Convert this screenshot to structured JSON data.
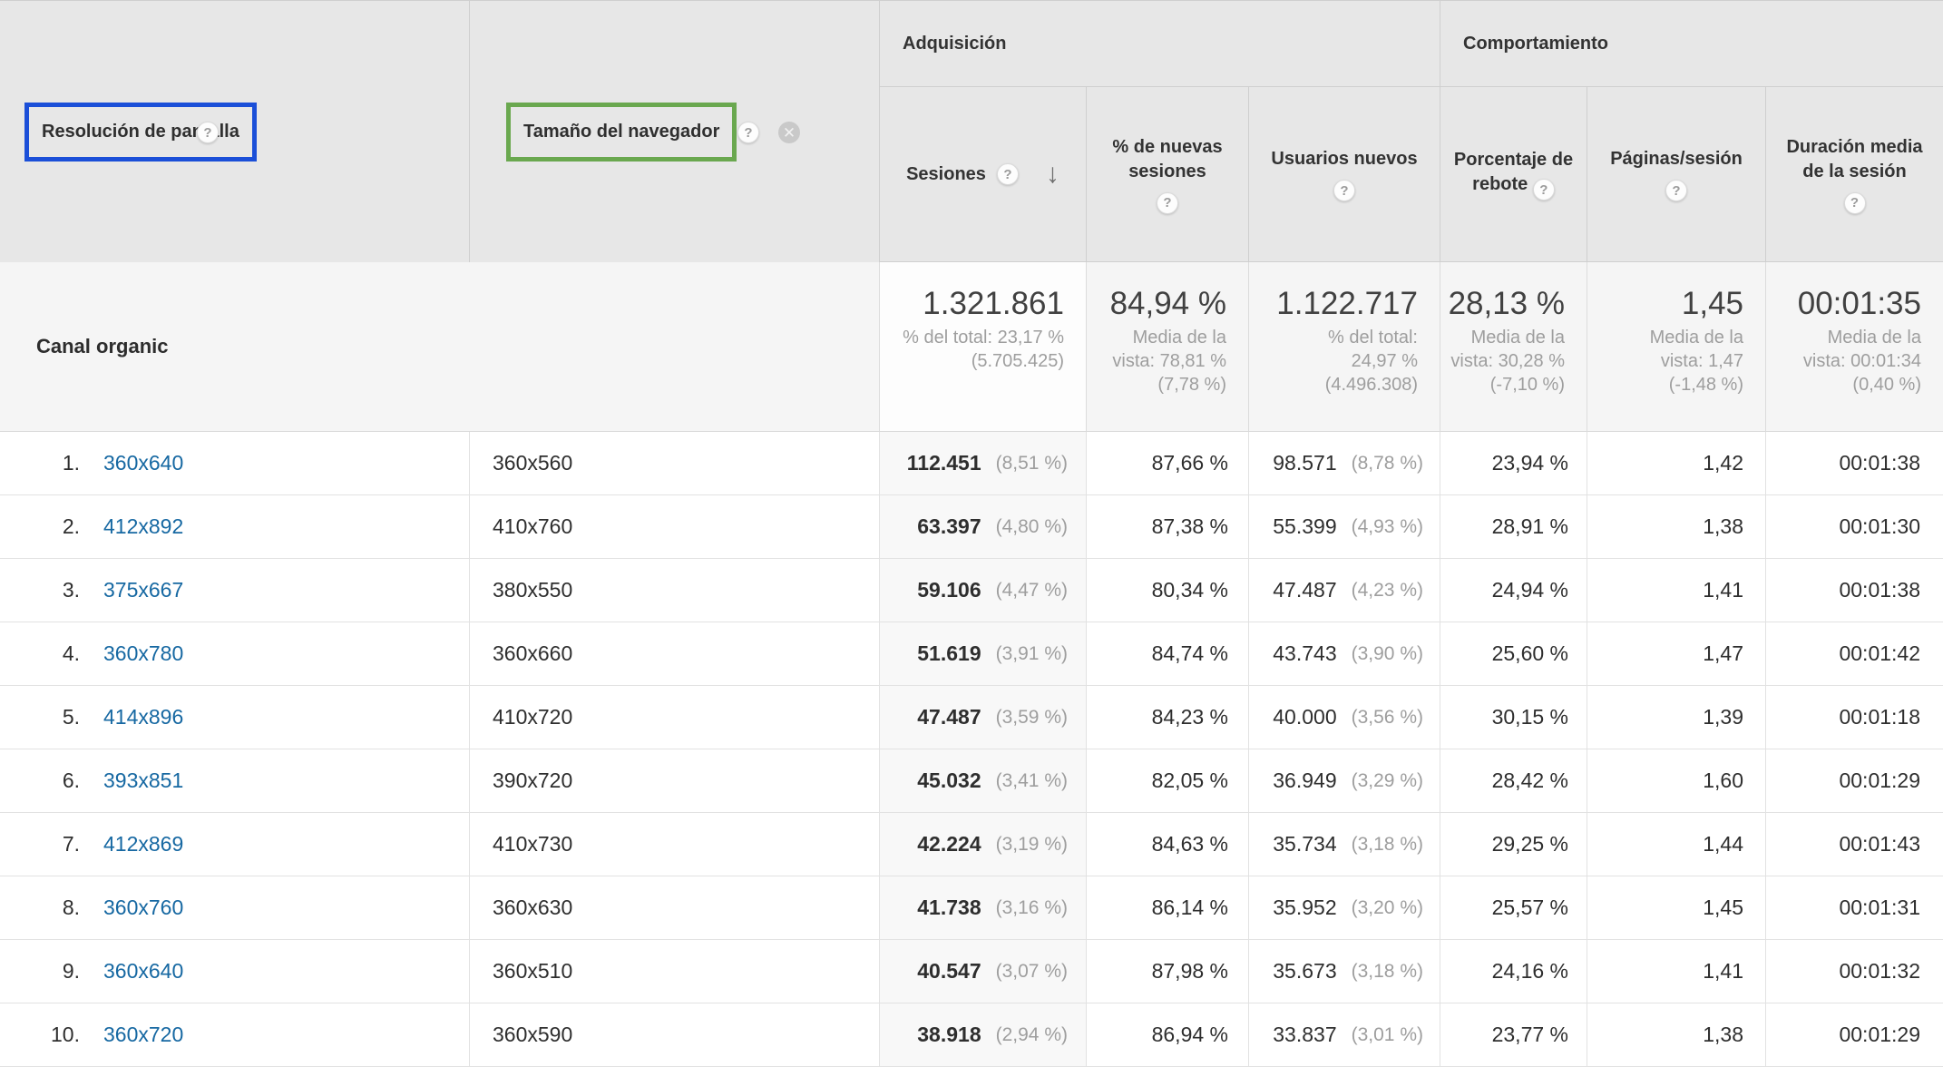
{
  "table": {
    "dimension_headers": {
      "primary": {
        "label": "Resolución de pantalla",
        "box_color": "#1b4fd8"
      },
      "secondary": {
        "label": "Tamaño del navegador",
        "box_color": "#6aa84f"
      }
    },
    "groups": {
      "acquisition": "Adquisición",
      "behavior": "Comportamiento"
    },
    "metric_headers": {
      "sessions": "Sesiones",
      "new_sessions_pct": "% de nuevas sesiones",
      "new_users": "Usuarios nuevos",
      "bounce_rate": "Porcentaje de rebote",
      "pages_per_session": "Páginas/sesión",
      "avg_session_duration": "Duración media de la sesión"
    },
    "summary": {
      "label": "Canal organic",
      "metrics": [
        {
          "value": "1.321.861",
          "sub": "% del total: 23,17 %\n(5.705.425)"
        },
        {
          "value": "84,94 %",
          "sub": "Media de la\nvista: 78,81 %\n(7,78 %)"
        },
        {
          "value": "1.122.717",
          "sub": "% del total:\n24,97 %\n(4.496.308)"
        },
        {
          "value": "28,13 %",
          "sub": "Media de la\nvista: 30,28 %\n(-7,10 %)"
        },
        {
          "value": "1,45",
          "sub": "Media de la\nvista: 1,47\n(-1,48 %)"
        },
        {
          "value": "00:01:35",
          "sub": "Media de la\nvista: 00:01:34\n(0,40 %)"
        }
      ]
    },
    "rows": [
      {
        "rank": "1.",
        "resolution": "360x640",
        "browser_size": "360x560",
        "sessions": "112.451",
        "sessions_pct": "(8,51 %)",
        "new_sessions_pct": "87,66 %",
        "new_users": "98.571",
        "new_users_pct": "(8,78 %)",
        "bounce_rate": "23,94 %",
        "pages_per_session": "1,42",
        "avg_session_duration": "00:01:38"
      },
      {
        "rank": "2.",
        "resolution": "412x892",
        "browser_size": "410x760",
        "sessions": "63.397",
        "sessions_pct": "(4,80 %)",
        "new_sessions_pct": "87,38 %",
        "new_users": "55.399",
        "new_users_pct": "(4,93 %)",
        "bounce_rate": "28,91 %",
        "pages_per_session": "1,38",
        "avg_session_duration": "00:01:30"
      },
      {
        "rank": "3.",
        "resolution": "375x667",
        "browser_size": "380x550",
        "sessions": "59.106",
        "sessions_pct": "(4,47 %)",
        "new_sessions_pct": "80,34 %",
        "new_users": "47.487",
        "new_users_pct": "(4,23 %)",
        "bounce_rate": "24,94 %",
        "pages_per_session": "1,41",
        "avg_session_duration": "00:01:38"
      },
      {
        "rank": "4.",
        "resolution": "360x780",
        "browser_size": "360x660",
        "sessions": "51.619",
        "sessions_pct": "(3,91 %)",
        "new_sessions_pct": "84,74 %",
        "new_users": "43.743",
        "new_users_pct": "(3,90 %)",
        "bounce_rate": "25,60 %",
        "pages_per_session": "1,47",
        "avg_session_duration": "00:01:42"
      },
      {
        "rank": "5.",
        "resolution": "414x896",
        "browser_size": "410x720",
        "sessions": "47.487",
        "sessions_pct": "(3,59 %)",
        "new_sessions_pct": "84,23 %",
        "new_users": "40.000",
        "new_users_pct": "(3,56 %)",
        "bounce_rate": "30,15 %",
        "pages_per_session": "1,39",
        "avg_session_duration": "00:01:18"
      },
      {
        "rank": "6.",
        "resolution": "393x851",
        "browser_size": "390x720",
        "sessions": "45.032",
        "sessions_pct": "(3,41 %)",
        "new_sessions_pct": "82,05 %",
        "new_users": "36.949",
        "new_users_pct": "(3,29 %)",
        "bounce_rate": "28,42 %",
        "pages_per_session": "1,60",
        "avg_session_duration": "00:01:29"
      },
      {
        "rank": "7.",
        "resolution": "412x869",
        "browser_size": "410x730",
        "sessions": "42.224",
        "sessions_pct": "(3,19 %)",
        "new_sessions_pct": "84,63 %",
        "new_users": "35.734",
        "new_users_pct": "(3,18 %)",
        "bounce_rate": "29,25 %",
        "pages_per_session": "1,44",
        "avg_session_duration": "00:01:43"
      },
      {
        "rank": "8.",
        "resolution": "360x760",
        "browser_size": "360x630",
        "sessions": "41.738",
        "sessions_pct": "(3,16 %)",
        "new_sessions_pct": "86,14 %",
        "new_users": "35.952",
        "new_users_pct": "(3,20 %)",
        "bounce_rate": "25,57 %",
        "pages_per_session": "1,45",
        "avg_session_duration": "00:01:31"
      },
      {
        "rank": "9.",
        "resolution": "360x640",
        "browser_size": "360x510",
        "sessions": "40.547",
        "sessions_pct": "(3,07 %)",
        "new_sessions_pct": "87,98 %",
        "new_users": "35.673",
        "new_users_pct": "(3,18 %)",
        "bounce_rate": "24,16 %",
        "pages_per_session": "1,41",
        "avg_session_duration": "00:01:32"
      },
      {
        "rank": "10.",
        "resolution": "360x720",
        "browser_size": "360x590",
        "sessions": "38.918",
        "sessions_pct": "(2,94 %)",
        "new_sessions_pct": "86,94 %",
        "new_users": "33.837",
        "new_users_pct": "(3,01 %)",
        "bounce_rate": "23,77 %",
        "pages_per_session": "1,38",
        "avg_session_duration": "00:01:29"
      }
    ]
  },
  "icons": {
    "help": "?",
    "sort_desc": "↓",
    "close": "✕"
  },
  "colors": {
    "header_bg": "#e7e7e7",
    "summary_bg": "#f5f5f5",
    "sorted_col_bg": "#f8f8f8",
    "link_blue": "#1668a2",
    "primary_box_blue": "#1b4fd8",
    "secondary_box_green": "#6aa84f",
    "muted_text": "#9e9e9e"
  }
}
